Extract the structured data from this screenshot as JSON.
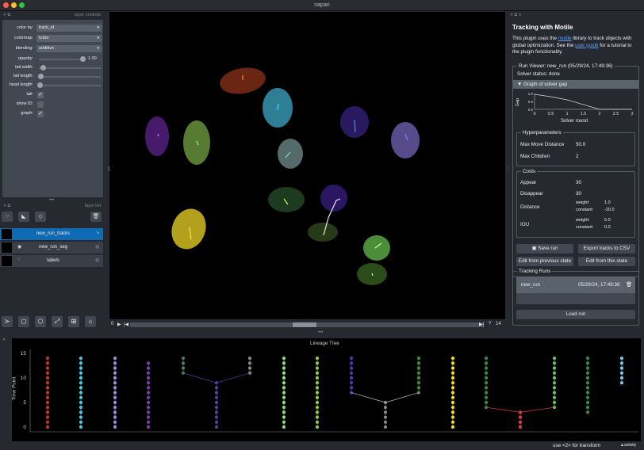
{
  "window": {
    "title": "napari"
  },
  "layer_controls": {
    "header": "layer controls",
    "color_by": {
      "label": "color by:",
      "value": "track_id"
    },
    "colormap": {
      "label": "colormap:",
      "value": "turbo"
    },
    "blending": {
      "label": "blending:",
      "value": "additive"
    },
    "opacity": {
      "label": "opacity:",
      "value": "1.00",
      "fraction": 1.0
    },
    "tail_width": {
      "label": "tail width:",
      "fraction": 0.05
    },
    "tail_length": {
      "label": "tail length:",
      "fraction": 0.02
    },
    "head_length": {
      "label": "head length:",
      "fraction": 0.0
    },
    "tail": {
      "label": "tail:",
      "checked": true
    },
    "show_id": {
      "label": "show ID:",
      "checked": false
    },
    "graph": {
      "label": "graph:",
      "checked": true
    }
  },
  "layer_list": {
    "header": "layer list",
    "layers": [
      {
        "name": "new_run_tracks",
        "selected": true
      },
      {
        "name": "new_run_seg",
        "selected": false
      },
      {
        "name": "labels",
        "selected": false
      }
    ]
  },
  "dims": {
    "start": "0",
    "current": "?",
    "end": "14"
  },
  "plugin": {
    "title": "Tracking with Motile",
    "desc_1": "This plugin uses the ",
    "link_motile": "motile",
    "desc_2": " library to track objects with global optimization. See the ",
    "link_guide": "user guide",
    "desc_3": " for a tutorial to the plugin functionality.",
    "run_viewer": "Run Viewer: new_run (05/29/24, 17:49:36)",
    "solver_status": "Solver status: done",
    "graph_section": "▼ Graph of solver gap",
    "gap_plot": {
      "ylabel": "Gap",
      "xlabel": "Solver round",
      "x_ticks": [
        "0",
        "0.5",
        "1",
        "1.5",
        "2",
        "2.5",
        "3"
      ],
      "y_ticks": [
        "1.0",
        "0.5",
        "0.0"
      ]
    },
    "hyper": {
      "title": "Hyperparameters",
      "max_move_label": "Max Move Distance",
      "max_move_value": "50.0",
      "max_children_label": "Max Children",
      "max_children_value": "2"
    },
    "costs": {
      "title": "Costs",
      "appear_label": "Appear",
      "appear_value": "30",
      "disappear_label": "Disappear",
      "disappear_value": "30",
      "distance_label": "Distance",
      "distance_weight": "weight:",
      "distance_weight_value": "1.0",
      "distance_constant": "constant:",
      "distance_constant_value": "-20.0",
      "iou_label": "IOU",
      "iou_weight": "weight:",
      "iou_weight_value": "5.0",
      "iou_constant": "constant:",
      "iou_constant_value": "0.0"
    },
    "save_run": "Save run",
    "export_csv": "Export tracks to CSV",
    "edit_prev": "Edit from previous state",
    "edit_this": "Edit from this state",
    "tracking_runs": {
      "title": "Tracking Runs",
      "run_name": "new_run",
      "run_date": "05/29/24, 17:49:36"
    },
    "load_run": "Load run"
  },
  "lineage": {
    "title": "Lineage Tree",
    "ylabel": "Time Point",
    "y_ticks": [
      "15",
      "10",
      "5",
      "0"
    ]
  },
  "status": {
    "hint": "use <2> for transform",
    "activity": "activity"
  }
}
